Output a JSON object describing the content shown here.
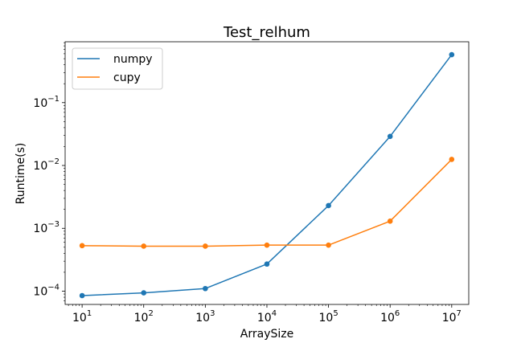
{
  "chart_data": {
    "type": "line",
    "title": "Test_relhum",
    "xlabel": "ArraySize",
    "ylabel": "Runtime(s)",
    "x_scale": "log",
    "y_scale": "log",
    "x": [
      10,
      100,
      1000,
      10000,
      100000,
      1000000,
      10000000
    ],
    "x_tick_labels": [
      {
        "base": "10",
        "exp": "1"
      },
      {
        "base": "10",
        "exp": "2"
      },
      {
        "base": "10",
        "exp": "3"
      },
      {
        "base": "10",
        "exp": "4"
      },
      {
        "base": "10",
        "exp": "5"
      },
      {
        "base": "10",
        "exp": "6"
      },
      {
        "base": "10",
        "exp": "7"
      }
    ],
    "y_tick_labels": [
      {
        "base": "10",
        "exp": "−4",
        "value": 0.0001
      },
      {
        "base": "10",
        "exp": "−3",
        "value": 0.001
      },
      {
        "base": "10",
        "exp": "−2",
        "value": 0.01
      },
      {
        "base": "10",
        "exp": "−1",
        "value": 0.1
      }
    ],
    "xlim": [
      5.3,
      18900000
    ],
    "ylim": [
      6.15e-05,
      0.93
    ],
    "grid": false,
    "legend_position": "upper-left",
    "series": [
      {
        "name": "numpy",
        "color": "#1f77b4",
        "marker": "circle",
        "values": [
          8.5e-05,
          9.4e-05,
          0.00011,
          0.00027,
          0.0023,
          0.029,
          0.58
        ]
      },
      {
        "name": "cupy",
        "color": "#ff7f0e",
        "marker": "circle",
        "values": [
          0.00053,
          0.00052,
          0.00052,
          0.00054,
          0.00054,
          0.0013,
          0.0125
        ]
      }
    ]
  }
}
